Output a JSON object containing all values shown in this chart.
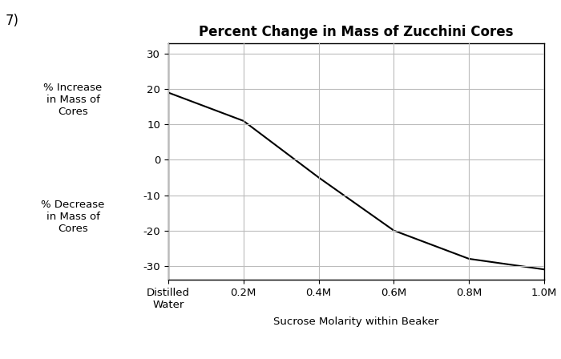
{
  "title": "Percent Change in Mass of Zucchini Cores",
  "label_prefix": "7)",
  "xlabel": "Sucrose Molarity within Beaker",
  "ylabel_increase": "% Increase\nin Mass of\nCores",
  "ylabel_decrease": "% Decrease\nin Mass of\nCores",
  "x_values": [
    0,
    0.2,
    0.4,
    0.6,
    0.8,
    1.0
  ],
  "y_values": [
    19,
    11,
    -5,
    -20,
    -28,
    -31
  ],
  "x_tick_labels": [
    "Distilled\nWater",
    "0.2M",
    "0.4M",
    "0.6M",
    "0.8M",
    "1.0M"
  ],
  "yticks": [
    -30,
    -20,
    -10,
    0,
    10,
    20,
    30
  ],
  "ylim": [
    -34,
    33
  ],
  "xlim": [
    0,
    1.0
  ],
  "line_color": "#000000",
  "line_width": 1.5,
  "grid_color": "#bbbbbb",
  "bg_color": "#ffffff",
  "title_fontsize": 12,
  "label_fontsize": 9.5,
  "tick_fontsize": 9.5,
  "prefix_fontsize": 12
}
